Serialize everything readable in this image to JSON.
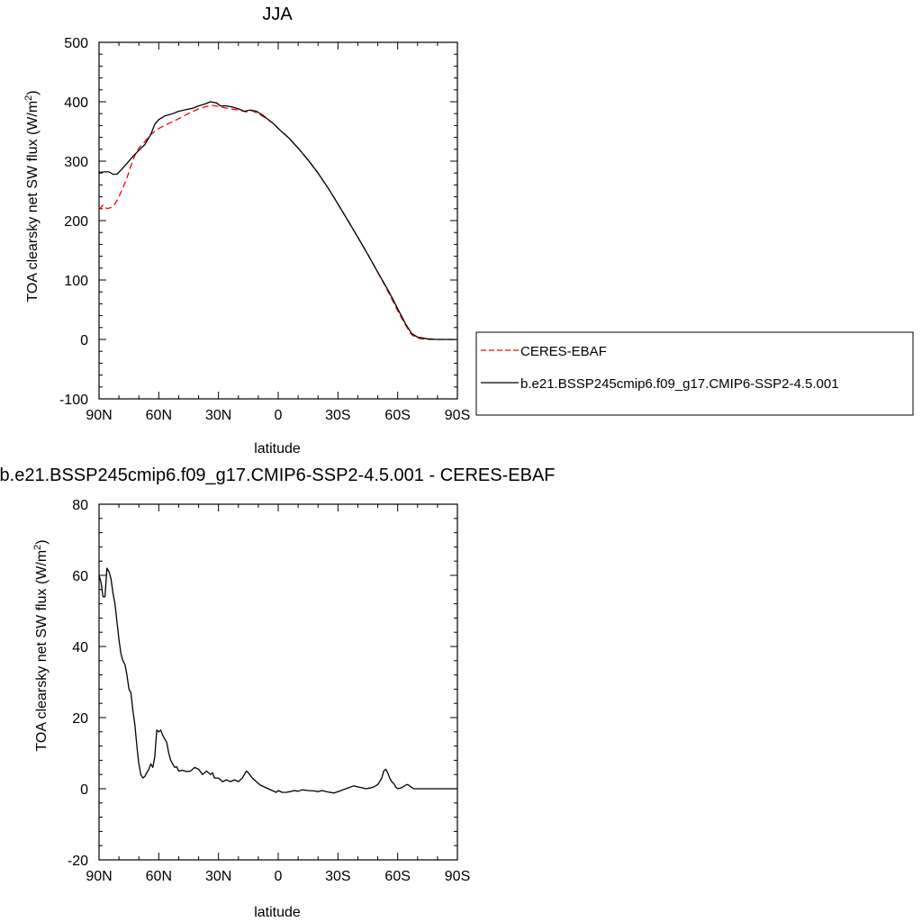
{
  "chart_data": [
    {
      "type": "line",
      "title": "JJA",
      "xlabel": "latitude",
      "ylabel": "TOA clearsky net SW flux (W/m",
      "ylabel_sup": "2",
      "ylabel_close": ")",
      "xlim": [
        90,
        -90
      ],
      "ylim": [
        -100,
        500
      ],
      "x_ticks": [
        90,
        60,
        30,
        0,
        -30,
        -60,
        -90
      ],
      "x_tick_labels": [
        "90N",
        "60N",
        "30N",
        "0",
        "30S",
        "60S",
        "90S"
      ],
      "y_ticks": [
        -100,
        0,
        100,
        200,
        300,
        400,
        500
      ],
      "y_tick_labels": [
        "-100",
        "0",
        "100",
        "200",
        "300",
        "400",
        "500"
      ],
      "legend_position": "right",
      "series": [
        {
          "name": "CERES-EBAF",
          "color": "#ff0000",
          "dash": "dashed",
          "points": [
            [
              90,
              218
            ],
            [
              88,
              226
            ],
            [
              86,
              220
            ],
            [
              84,
              222
            ],
            [
              82,
              228
            ],
            [
              80,
              240
            ],
            [
              78,
              255
            ],
            [
              76,
              272
            ],
            [
              74,
              292
            ],
            [
              72,
              310
            ],
            [
              70,
              322
            ],
            [
              67,
              333
            ],
            [
              64,
              345
            ],
            [
              60,
              355
            ],
            [
              56,
              362
            ],
            [
              52,
              368
            ],
            [
              48,
              375
            ],
            [
              44,
              382
            ],
            [
              40,
              388
            ],
            [
              36,
              392
            ],
            [
              33,
              394
            ],
            [
              30,
              392
            ],
            [
              27,
              390
            ],
            [
              24,
              388
            ],
            [
              20,
              386
            ],
            [
              16,
              383
            ],
            [
              13,
              385
            ],
            [
              10,
              380
            ],
            [
              6,
              372
            ],
            [
              3,
              365
            ],
            [
              0,
              355
            ],
            [
              -5,
              340
            ],
            [
              -10,
              322
            ],
            [
              -15,
              302
            ],
            [
              -20,
              280
            ],
            [
              -25,
              255
            ],
            [
              -30,
              228
            ],
            [
              -35,
              200
            ],
            [
              -40,
              172
            ],
            [
              -45,
              143
            ],
            [
              -50,
              113
            ],
            [
              -55,
              82
            ],
            [
              -58,
              62
            ],
            [
              -61,
              42
            ],
            [
              -64,
              24
            ],
            [
              -67,
              8
            ],
            [
              -70,
              2
            ],
            [
              -75,
              0
            ],
            [
              -80,
              0
            ],
            [
              -85,
              0
            ],
            [
              -90,
              0
            ]
          ]
        },
        {
          "name": "b.e21.BSSP245cmip6.f09_g17.CMIP6-SSP2-4.5.001",
          "color": "#000000",
          "dash": "solid",
          "points": [
            [
              90,
              281
            ],
            [
              87,
              282
            ],
            [
              85,
              282
            ],
            [
              83,
              278
            ],
            [
              81,
              278
            ],
            [
              79,
              285
            ],
            [
              76,
              296
            ],
            [
              73,
              308
            ],
            [
              70,
              318
            ],
            [
              67,
              328
            ],
            [
              64,
              345
            ],
            [
              62,
              362
            ],
            [
              60,
              370
            ],
            [
              57,
              376
            ],
            [
              53,
              380
            ],
            [
              50,
              384
            ],
            [
              46,
              387
            ],
            [
              43,
              389
            ],
            [
              40,
              393
            ],
            [
              37,
              396
            ],
            [
              34,
              400
            ],
            [
              31,
              398
            ],
            [
              29,
              393
            ],
            [
              26,
              393
            ],
            [
              23,
              391
            ],
            [
              20,
              388
            ],
            [
              17,
              384
            ],
            [
              14,
              386
            ],
            [
              11,
              384
            ],
            [
              8,
              378
            ],
            [
              5,
              370
            ],
            [
              2,
              362
            ],
            [
              0,
              355
            ],
            [
              -5,
              340
            ],
            [
              -10,
              322
            ],
            [
              -15,
              302
            ],
            [
              -20,
              280
            ],
            [
              -25,
              255
            ],
            [
              -30,
              228
            ],
            [
              -35,
              200
            ],
            [
              -40,
              172
            ],
            [
              -45,
              143
            ],
            [
              -50,
              113
            ],
            [
              -55,
              84
            ],
            [
              -58,
              65
            ],
            [
              -61,
              45
            ],
            [
              -64,
              26
            ],
            [
              -67,
              10
            ],
            [
              -70,
              4
            ],
            [
              -75,
              1
            ],
            [
              -80,
              0
            ],
            [
              -85,
              0
            ],
            [
              -90,
              0
            ]
          ]
        }
      ]
    },
    {
      "type": "line",
      "title": "b.e21.BSSP245cmip6.f09_g17.CMIP6-SSP2-4.5.001 - CERES-EBAF",
      "xlabel": "latitude",
      "ylabel": "TOA clearsky net SW flux (W/m",
      "ylabel_sup": "2",
      "ylabel_close": ")",
      "xlim": [
        90,
        -90
      ],
      "ylim": [
        -20,
        80
      ],
      "x_ticks": [
        90,
        60,
        30,
        0,
        -30,
        -60,
        -90
      ],
      "x_tick_labels": [
        "90N",
        "60N",
        "30N",
        "0",
        "30S",
        "60S",
        "90S"
      ],
      "y_ticks": [
        -20,
        0,
        20,
        40,
        60,
        80
      ],
      "y_tick_labels": [
        "-20",
        "0",
        "20",
        "40",
        "60",
        "80"
      ],
      "series": [
        {
          "name": "",
          "color": "#000000",
          "dash": "solid",
          "points": [
            [
              90,
              60
            ],
            [
              89,
              58
            ],
            [
              88,
              54
            ],
            [
              87,
              54
            ],
            [
              86,
              62
            ],
            [
              85,
              61
            ],
            [
              84,
              59
            ],
            [
              83,
              55
            ],
            [
              82,
              52
            ],
            [
              81,
              47
            ],
            [
              80,
              42
            ],
            [
              79,
              38
            ],
            [
              78,
              36
            ],
            [
              77,
              35
            ],
            [
              76,
              32
            ],
            [
              75,
              28
            ],
            [
              74,
              27
            ],
            [
              73,
              22
            ],
            [
              72,
              18
            ],
            [
              71,
              12
            ],
            [
              70,
              7
            ],
            [
              69,
              4
            ],
            [
              68,
              3
            ],
            [
              67,
              3.5
            ],
            [
              66,
              4.5
            ],
            [
              65,
              5.5
            ],
            [
              64,
              7
            ],
            [
              63,
              6
            ],
            [
              62,
              9
            ],
            [
              61,
              16.5
            ],
            [
              60,
              16
            ],
            [
              59,
              16.5
            ],
            [
              58,
              15
            ],
            [
              57,
              14
            ],
            [
              56,
              13
            ],
            [
              55,
              10
            ],
            [
              54,
              8
            ],
            [
              53,
              7
            ],
            [
              52,
              6
            ],
            [
              51,
              6.2
            ],
            [
              50,
              5
            ],
            [
              48,
              5.2
            ],
            [
              46,
              4.8
            ],
            [
              44,
              5
            ],
            [
              42,
              6
            ],
            [
              40,
              5.5
            ],
            [
              38,
              4
            ],
            [
              36,
              5
            ],
            [
              34,
              4
            ],
            [
              33,
              4.5
            ],
            [
              32,
              3
            ],
            [
              30,
              3
            ],
            [
              28,
              2
            ],
            [
              26,
              2.5
            ],
            [
              24,
              2
            ],
            [
              22,
              2.5
            ],
            [
              20,
              2
            ],
            [
              18,
              3
            ],
            [
              17,
              4
            ],
            [
              16,
              5
            ],
            [
              15,
              4.5
            ],
            [
              13,
              3
            ],
            [
              11,
              2
            ],
            [
              9,
              1
            ],
            [
              7,
              0.5
            ],
            [
              5,
              0
            ],
            [
              3,
              -0.5
            ],
            [
              1,
              -1
            ],
            [
              0,
              -0.5
            ],
            [
              -2,
              -1
            ],
            [
              -4,
              -1
            ],
            [
              -6,
              -0.8
            ],
            [
              -8,
              -0.5
            ],
            [
              -10,
              -0.7
            ],
            [
              -12,
              -0.3
            ],
            [
              -15,
              -0.5
            ],
            [
              -18,
              -0.6
            ],
            [
              -20,
              -0.8
            ],
            [
              -22,
              -0.5
            ],
            [
              -25,
              -0.9
            ],
            [
              -28,
              -1.2
            ],
            [
              -30,
              -0.8
            ],
            [
              -32,
              -0.4
            ],
            [
              -34,
              0
            ],
            [
              -36,
              0.4
            ],
            [
              -38,
              0.8
            ],
            [
              -40,
              0.5
            ],
            [
              -42,
              0.3
            ],
            [
              -44,
              0
            ],
            [
              -46,
              0.2
            ],
            [
              -48,
              0.5
            ],
            [
              -50,
              1.2
            ],
            [
              -52,
              3
            ],
            [
              -53,
              5
            ],
            [
              -54,
              5.5
            ],
            [
              -55,
              4.5
            ],
            [
              -56,
              3
            ],
            [
              -57,
              2
            ],
            [
              -58,
              1.5
            ],
            [
              -59,
              0.5
            ],
            [
              -60,
              0
            ],
            [
              -62,
              0.3
            ],
            [
              -64,
              1
            ],
            [
              -65,
              1.2
            ],
            [
              -66,
              0.8
            ],
            [
              -68,
              0
            ],
            [
              -70,
              0
            ],
            [
              -75,
              0
            ],
            [
              -80,
              0
            ],
            [
              -85,
              0
            ],
            [
              -90,
              0
            ]
          ]
        }
      ]
    }
  ]
}
